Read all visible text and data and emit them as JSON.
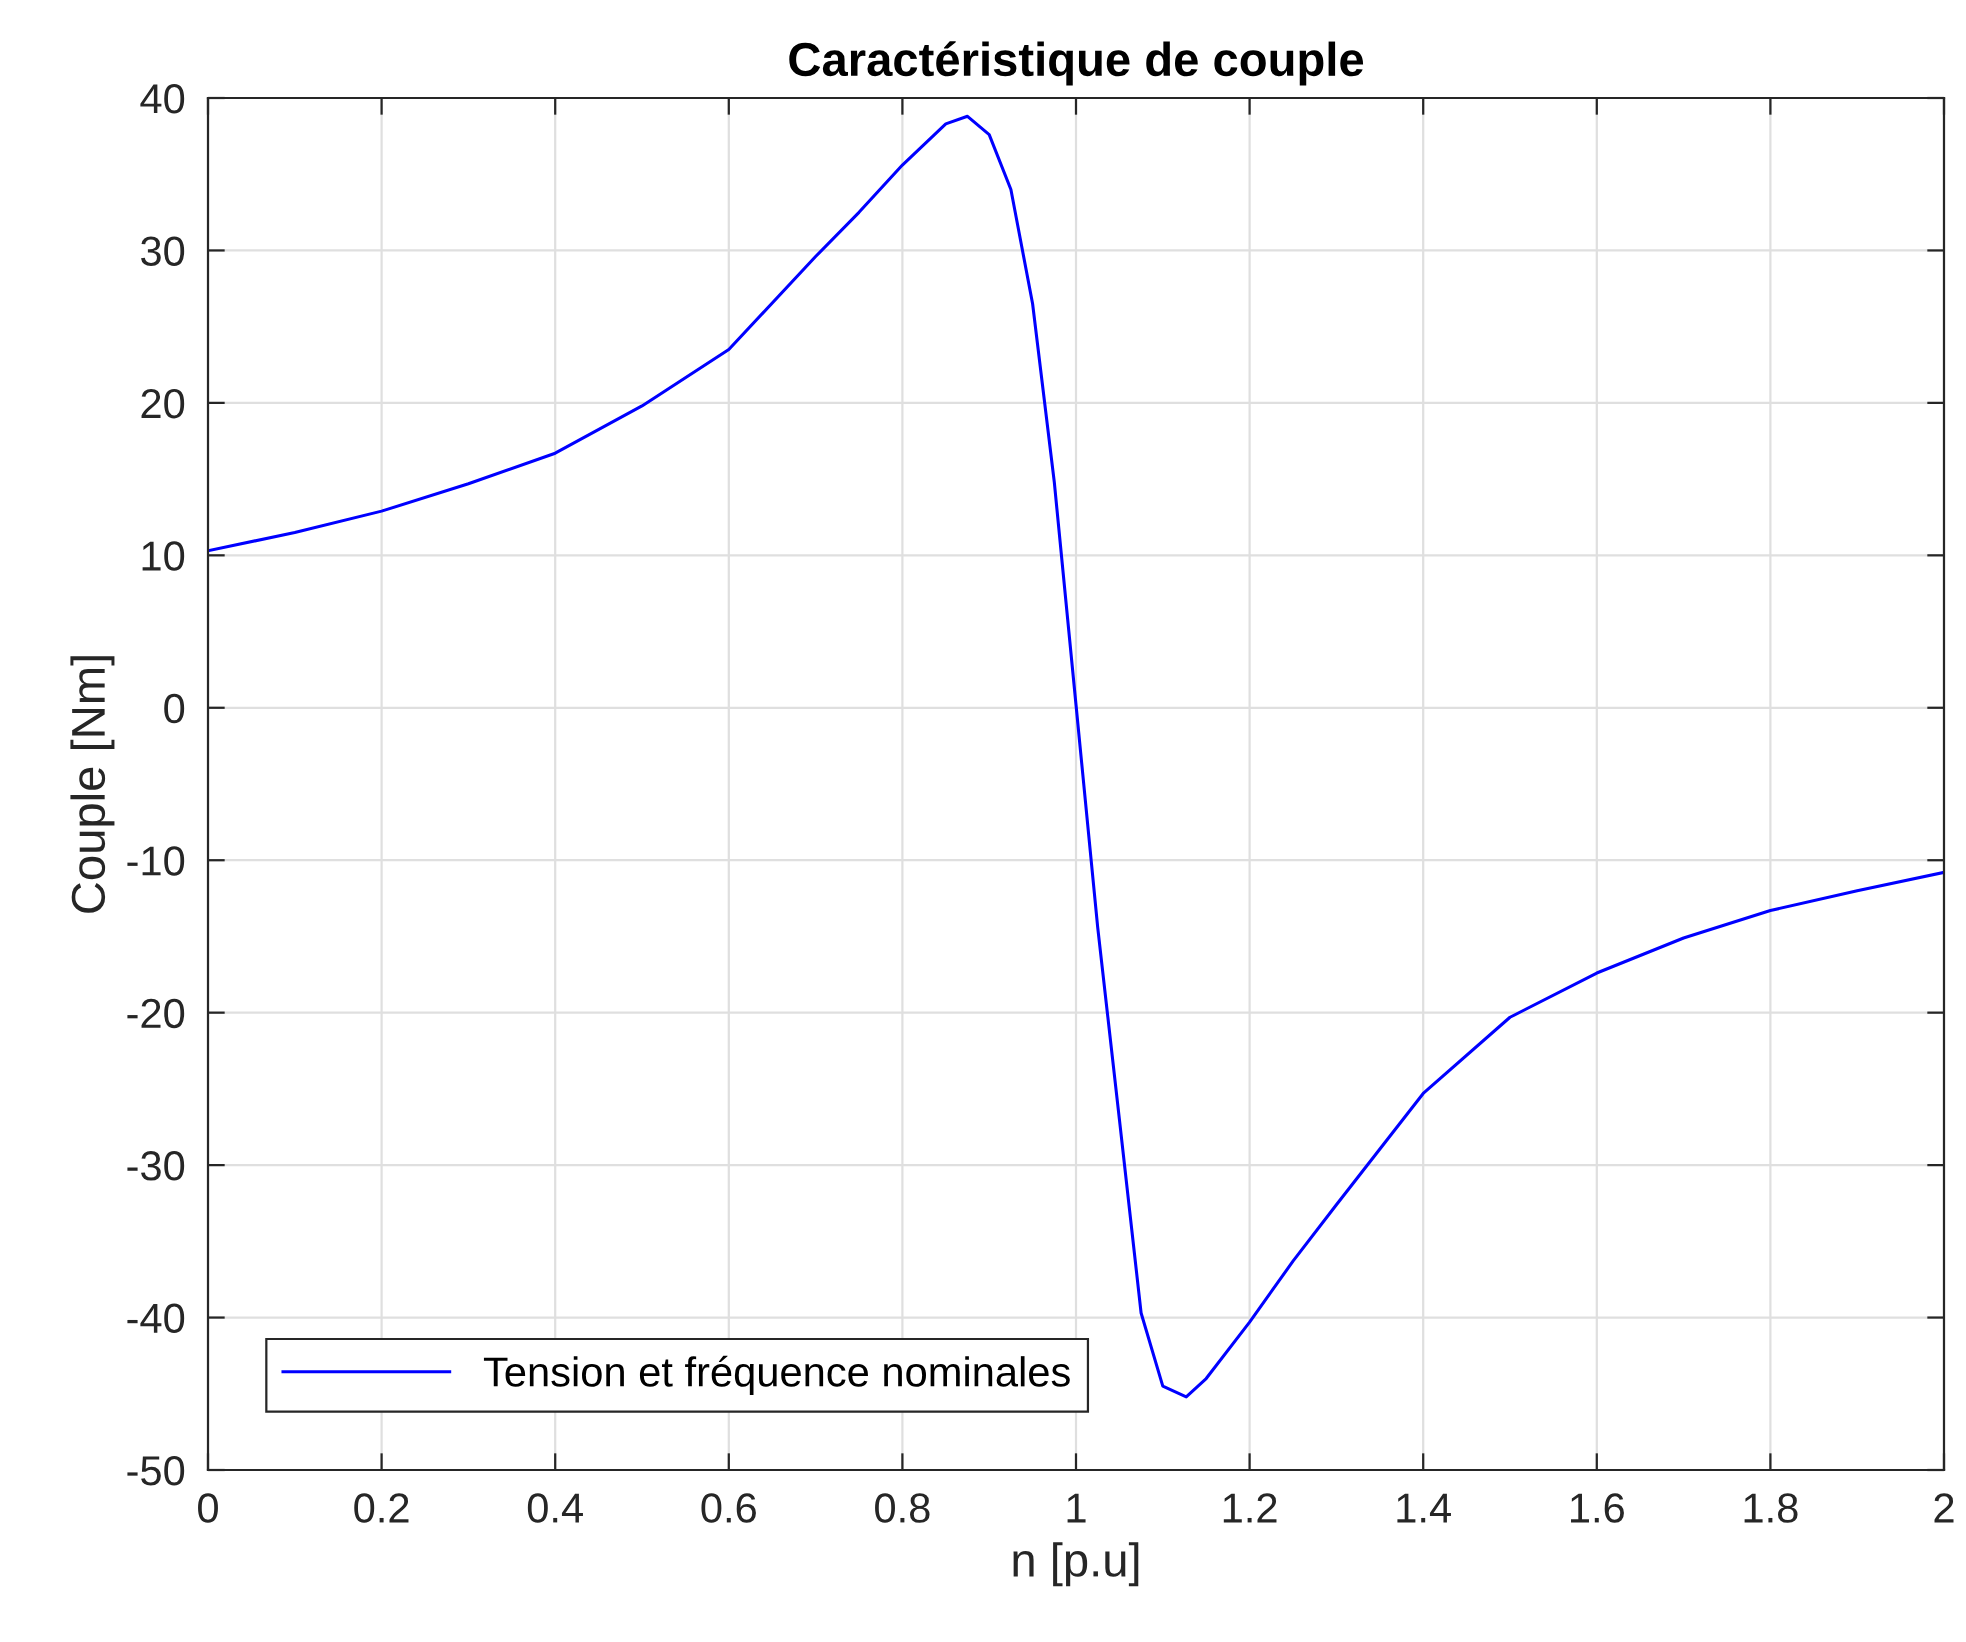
{
  "chart_data": {
    "type": "line",
    "title": "Caractéristique de couple",
    "xlabel": "n [p.u]",
    "ylabel": "Couple [Nm]",
    "xlim": [
      0,
      2
    ],
    "xticks": [
      0,
      0.2,
      0.4,
      0.6,
      0.8,
      1,
      1.2,
      1.4,
      1.6,
      1.8,
      2
    ],
    "ylim": [
      -50,
      40
    ],
    "yticks": [
      -50,
      -40,
      -30,
      -20,
      -10,
      0,
      10,
      20,
      30,
      40
    ],
    "grid": true,
    "legend": "bottom left",
    "marker": "none",
    "line_style": "solid",
    "series": [
      {
        "name": "Tension et fréquence nominales",
        "color": "#0000ff",
        "x": [
          0,
          0.1,
          0.2,
          0.3,
          0.4,
          0.5,
          0.6,
          0.7,
          0.75,
          0.8,
          0.85,
          0.875,
          0.9,
          0.925,
          0.95,
          0.975,
          1.0,
          1.025,
          1.05,
          1.075,
          1.1,
          1.127,
          1.15,
          1.2,
          1.25,
          1.3,
          1.4,
          1.5,
          1.6,
          1.7,
          1.8,
          1.9,
          2.0
        ],
        "values": [
          10.3,
          11.5,
          12.9,
          14.7,
          16.7,
          19.8,
          23.5,
          29.6,
          32.5,
          35.6,
          38.3,
          38.8,
          37.6,
          34,
          26.5,
          14.8,
          0.2,
          -14.4,
          -27,
          -39.7,
          -44.5,
          -45.2,
          -44,
          -40.3,
          -36.3,
          -32.6,
          -25.3,
          -20.3,
          -17.4,
          -15.1,
          -13.3,
          -12,
          -10.8
        ]
      }
    ]
  }
}
